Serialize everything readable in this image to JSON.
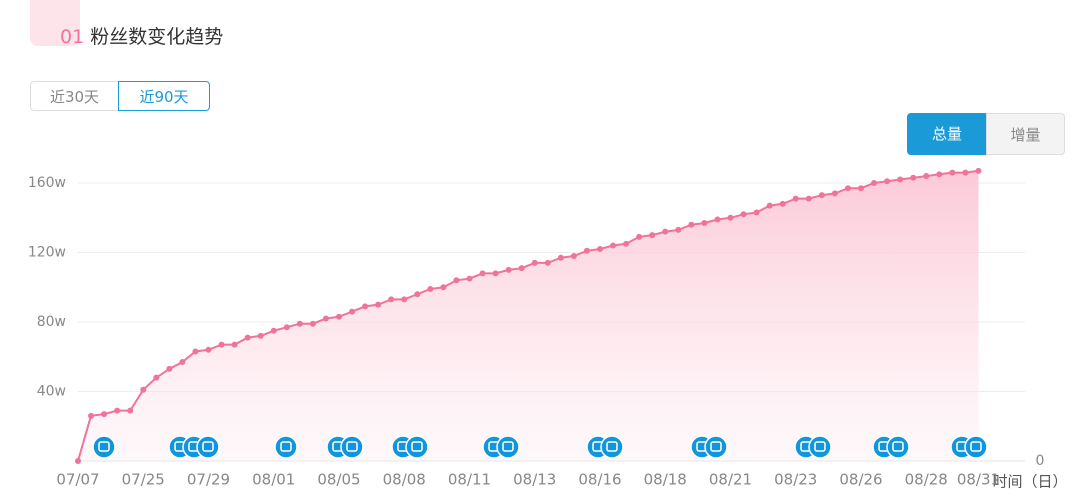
{
  "header": {
    "number": "01",
    "title": "粉丝数变化趋势"
  },
  "range_tabs": [
    "近30天",
    "近90天"
  ],
  "mode_tabs": [
    "总量",
    "增量"
  ],
  "chart_data": {
    "type": "line",
    "area": true,
    "color": "#f07499",
    "x_label": "时间（日）",
    "categories": [
      "07/07",
      null,
      null,
      null,
      null,
      "07/25",
      null,
      null,
      null,
      null,
      "07/29",
      null,
      null,
      null,
      null,
      "08/01",
      null,
      null,
      null,
      null,
      "08/05",
      null,
      null,
      null,
      null,
      "08/08",
      null,
      null,
      null,
      null,
      "08/11",
      null,
      null,
      null,
      null,
      "08/13",
      null,
      null,
      null,
      null,
      "08/16",
      null,
      null,
      null,
      null,
      "08/18",
      null,
      null,
      null,
      null,
      "08/21",
      null,
      null,
      null,
      null,
      "08/23",
      null,
      null,
      null,
      null,
      "08/26",
      null,
      null,
      null,
      null,
      "08/28",
      null,
      null,
      null,
      "08/31"
    ],
    "values": [
      0,
      26,
      27,
      29,
      29,
      41,
      48,
      53,
      57,
      63,
      64,
      67,
      67,
      71,
      72,
      75,
      77,
      79,
      79,
      82,
      83,
      86,
      89,
      90,
      93,
      93,
      96,
      99,
      100,
      104,
      105,
      108,
      108,
      110,
      111,
      114,
      114,
      117,
      118,
      121,
      122,
      124,
      125,
      129,
      130,
      132,
      133,
      136,
      137,
      139,
      140,
      142,
      143,
      147,
      148,
      151,
      151,
      153,
      154,
      157,
      157,
      160,
      161,
      162,
      163,
      164,
      165,
      166,
      166,
      167
    ],
    "ylim": [
      0,
      160
    ],
    "yticks": [
      {
        "value": 40,
        "label": "40w"
      },
      {
        "value": 80,
        "label": "80w"
      },
      {
        "value": 120,
        "label": "120w"
      },
      {
        "value": 160,
        "label": "160w"
      }
    ],
    "y2ticks": [
      0
    ],
    "grid": true
  }
}
